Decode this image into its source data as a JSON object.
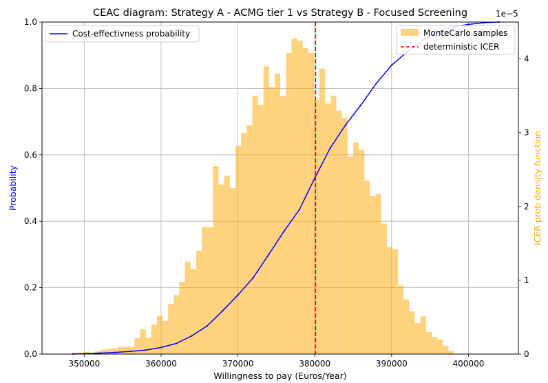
{
  "chart_data": {
    "type": "line",
    "title": "CEAC diagram: Strategy A - ACMG tier 1 vs Strategy B - Focused Screening",
    "xlabel": "Willingness to pay (Euros/Year)",
    "ylabel": "Probability",
    "y2label": "ICER prob density function",
    "y2_offset_text": "1e−5",
    "xlim": [
      344500,
      406500
    ],
    "ylim": [
      0,
      1.0
    ],
    "y2lim": [
      0,
      4.5
    ],
    "x_ticks": [
      350000,
      360000,
      370000,
      380000,
      390000,
      400000
    ],
    "x_tick_labels": [
      "350000",
      "360000",
      "370000",
      "380000",
      "390000",
      "400000"
    ],
    "y_ticks": [
      0,
      0.2,
      0.4,
      0.6,
      0.8,
      1.0
    ],
    "y_tick_labels": [
      "0.0",
      "0.2",
      "0.4",
      "0.6",
      "0.8",
      "1.0"
    ],
    "y2_ticks": [
      0,
      1,
      2,
      3,
      4
    ],
    "y2_tick_labels": [
      "0",
      "1",
      "2",
      "3",
      "4"
    ],
    "grid": true,
    "colors": {
      "line": "#0000ff",
      "bars": "#ffa500",
      "icer": "#ff0000",
      "y2label": "#ffa500",
      "ylabel": "#0000ff"
    },
    "legends": {
      "left": {
        "placement": "top-left",
        "entries": [
          "Cost-effectivness probability"
        ]
      },
      "right": {
        "placement": "top-right",
        "entries": [
          "MonteCarlo samples",
          "deterministic ICER"
        ]
      }
    },
    "deterministic_icer": 380100,
    "histogram": {
      "name": "MonteCarlo samples",
      "bin_start": 348500,
      "bin_width": 730,
      "density": [
        0.02,
        0.02,
        0.03,
        0.02,
        0.04,
        0.06,
        0.07,
        0.08,
        0.1,
        0.1,
        0.1,
        0.22,
        0.34,
        0.22,
        0.4,
        0.52,
        0.45,
        0.68,
        0.8,
        0.98,
        1.25,
        1.15,
        1.4,
        1.72,
        1.72,
        2.55,
        2.3,
        2.42,
        2.25,
        2.82,
        3.0,
        3.1,
        3.5,
        3.38,
        3.9,
        3.62,
        3.8,
        3.5,
        4.08,
        4.28,
        4.25,
        4.15,
        4.08,
        3.45,
        3.87,
        3.4,
        3.5,
        3.3,
        3.2,
        2.68,
        2.87,
        2.77,
        2.35,
        2.14,
        2.17,
        1.77,
        1.45,
        1.42,
        0.93,
        0.74,
        0.58,
        0.42,
        0.51,
        0.3,
        0.23,
        0.2,
        0.11,
        0.04
      ]
    },
    "series": [
      {
        "name": "Cost-effectivness probability",
        "x": [
          348500,
          350000,
          352000,
          354000,
          356000,
          358000,
          360000,
          362000,
          364000,
          366000,
          368000,
          370000,
          372000,
          374000,
          376000,
          378000,
          380000,
          382000,
          384000,
          386000,
          388000,
          390000,
          392000,
          394000,
          396000,
          398000,
          400000,
          402000,
          404000
        ],
        "y": [
          0.0,
          0.001,
          0.003,
          0.005,
          0.008,
          0.012,
          0.02,
          0.032,
          0.055,
          0.085,
          0.13,
          0.178,
          0.23,
          0.3,
          0.37,
          0.435,
          0.53,
          0.62,
          0.69,
          0.75,
          0.815,
          0.87,
          0.91,
          0.945,
          0.97,
          0.985,
          0.993,
          0.998,
          1.0
        ]
      }
    ]
  }
}
